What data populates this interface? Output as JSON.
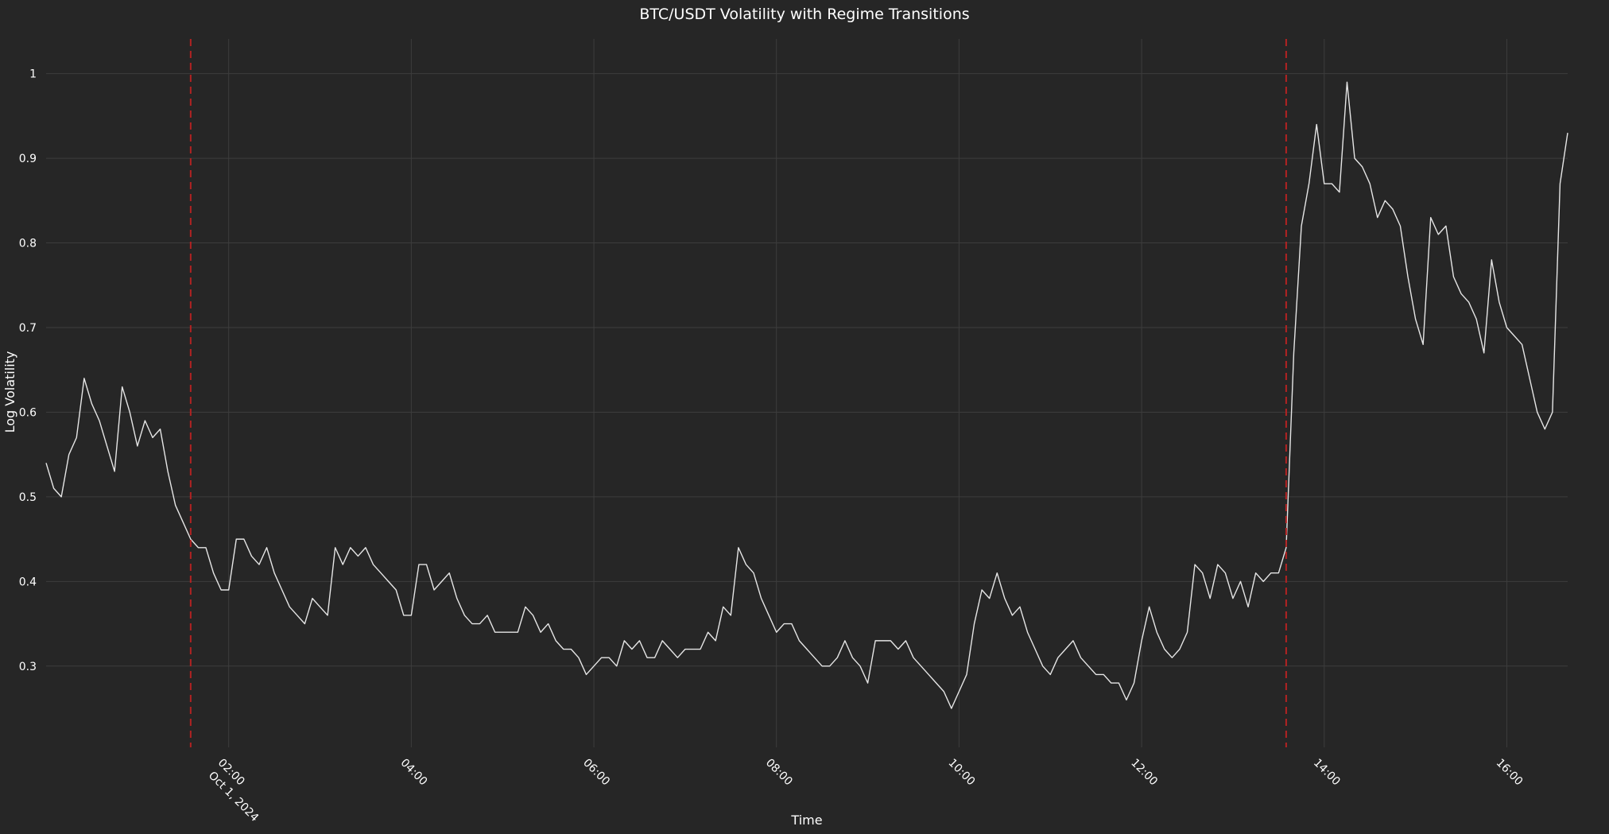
{
  "chart_data": {
    "type": "line",
    "title": "BTC/USDT Volatility with Regime Transitions",
    "x_title": "Time",
    "y_title": "Log Volatility",
    "x_date_label": "Oct 1, 2024",
    "color": "#e6e6e6",
    "transition_color": "#b22222",
    "grid": true,
    "x": [
      "2024-10-01 00:00",
      "2024-10-01 00:05",
      "2024-10-01 00:10",
      "2024-10-01 00:15",
      "2024-10-01 00:20",
      "2024-10-01 00:25",
      "2024-10-01 00:30",
      "2024-10-01 00:35",
      "2024-10-01 00:40",
      "2024-10-01 00:45",
      "2024-10-01 00:50",
      "2024-10-01 00:55",
      "2024-10-01 01:00",
      "2024-10-01 01:05",
      "2024-10-01 01:10",
      "2024-10-01 01:15",
      "2024-10-01 01:20",
      "2024-10-01 01:25",
      "2024-10-01 01:30",
      "2024-10-01 01:35",
      "2024-10-01 01:40",
      "2024-10-01 01:45",
      "2024-10-01 01:50",
      "2024-10-01 01:55",
      "2024-10-01 02:00",
      "2024-10-01 02:05",
      "2024-10-01 02:10",
      "2024-10-01 02:15",
      "2024-10-01 02:20",
      "2024-10-01 02:25",
      "2024-10-01 02:30",
      "2024-10-01 02:35",
      "2024-10-01 02:40",
      "2024-10-01 02:45",
      "2024-10-01 02:50",
      "2024-10-01 02:55",
      "2024-10-01 03:00",
      "2024-10-01 03:05",
      "2024-10-01 03:10",
      "2024-10-01 03:15",
      "2024-10-01 03:20",
      "2024-10-01 03:25",
      "2024-10-01 03:30",
      "2024-10-01 03:35",
      "2024-10-01 03:40",
      "2024-10-01 03:45",
      "2024-10-01 03:50",
      "2024-10-01 03:55",
      "2024-10-01 04:00",
      "2024-10-01 04:05",
      "2024-10-01 04:10",
      "2024-10-01 04:15",
      "2024-10-01 04:20",
      "2024-10-01 04:25",
      "2024-10-01 04:30",
      "2024-10-01 04:35",
      "2024-10-01 04:40",
      "2024-10-01 04:45",
      "2024-10-01 04:50",
      "2024-10-01 04:55",
      "2024-10-01 05:00",
      "2024-10-01 05:05",
      "2024-10-01 05:10",
      "2024-10-01 05:15",
      "2024-10-01 05:20",
      "2024-10-01 05:25",
      "2024-10-01 05:30",
      "2024-10-01 05:35",
      "2024-10-01 05:40",
      "2024-10-01 05:45",
      "2024-10-01 05:50",
      "2024-10-01 05:55",
      "2024-10-01 06:00",
      "2024-10-01 06:05",
      "2024-10-01 06:10",
      "2024-10-01 06:15",
      "2024-10-01 06:20",
      "2024-10-01 06:25",
      "2024-10-01 06:30",
      "2024-10-01 06:35",
      "2024-10-01 06:40",
      "2024-10-01 06:45",
      "2024-10-01 06:50",
      "2024-10-01 06:55",
      "2024-10-01 07:00",
      "2024-10-01 07:05",
      "2024-10-01 07:10",
      "2024-10-01 07:15",
      "2024-10-01 07:20",
      "2024-10-01 07:25",
      "2024-10-01 07:30",
      "2024-10-01 07:35",
      "2024-10-01 07:40",
      "2024-10-01 07:45",
      "2024-10-01 07:50",
      "2024-10-01 07:55",
      "2024-10-01 08:00",
      "2024-10-01 08:05",
      "2024-10-01 08:10",
      "2024-10-01 08:15",
      "2024-10-01 08:20",
      "2024-10-01 08:25",
      "2024-10-01 08:30",
      "2024-10-01 08:35",
      "2024-10-01 08:40",
      "2024-10-01 08:45",
      "2024-10-01 08:50",
      "2024-10-01 08:55",
      "2024-10-01 09:00",
      "2024-10-01 09:05",
      "2024-10-01 09:10",
      "2024-10-01 09:15",
      "2024-10-01 09:20",
      "2024-10-01 09:25",
      "2024-10-01 09:30",
      "2024-10-01 09:35",
      "2024-10-01 09:40",
      "2024-10-01 09:45",
      "2024-10-01 09:50",
      "2024-10-01 09:55",
      "2024-10-01 10:00",
      "2024-10-01 10:05",
      "2024-10-01 10:10",
      "2024-10-01 10:15",
      "2024-10-01 10:20",
      "2024-10-01 10:25",
      "2024-10-01 10:30",
      "2024-10-01 10:35",
      "2024-10-01 10:40",
      "2024-10-01 10:45",
      "2024-10-01 10:50",
      "2024-10-01 10:55",
      "2024-10-01 11:00",
      "2024-10-01 11:05",
      "2024-10-01 11:10",
      "2024-10-01 11:15",
      "2024-10-01 11:20",
      "2024-10-01 11:25",
      "2024-10-01 11:30",
      "2024-10-01 11:35",
      "2024-10-01 11:40",
      "2024-10-01 11:45",
      "2024-10-01 11:50",
      "2024-10-01 11:55",
      "2024-10-01 12:00",
      "2024-10-01 12:05",
      "2024-10-01 12:10",
      "2024-10-01 12:15",
      "2024-10-01 12:20",
      "2024-10-01 12:25",
      "2024-10-01 12:30",
      "2024-10-01 12:35",
      "2024-10-01 12:40",
      "2024-10-01 12:45",
      "2024-10-01 12:50",
      "2024-10-01 12:55",
      "2024-10-01 13:00",
      "2024-10-01 13:05",
      "2024-10-01 13:10",
      "2024-10-01 13:15",
      "2024-10-01 13:20",
      "2024-10-01 13:25",
      "2024-10-01 13:30",
      "2024-10-01 13:35",
      "2024-10-01 13:40",
      "2024-10-01 13:45",
      "2024-10-01 13:50",
      "2024-10-01 13:55",
      "2024-10-01 14:00",
      "2024-10-01 14:05",
      "2024-10-01 14:10",
      "2024-10-01 14:15",
      "2024-10-01 14:20",
      "2024-10-01 14:25",
      "2024-10-01 14:30",
      "2024-10-01 14:35",
      "2024-10-01 14:40",
      "2024-10-01 14:45",
      "2024-10-01 14:50",
      "2024-10-01 14:55",
      "2024-10-01 15:00",
      "2024-10-01 15:05",
      "2024-10-01 15:10",
      "2024-10-01 15:15",
      "2024-10-01 15:20",
      "2024-10-01 15:25",
      "2024-10-01 15:30",
      "2024-10-01 15:35",
      "2024-10-01 15:40",
      "2024-10-01 15:45",
      "2024-10-01 15:50",
      "2024-10-01 15:55",
      "2024-10-01 16:00",
      "2024-10-01 16:05",
      "2024-10-01 16:10",
      "2024-10-01 16:15",
      "2024-10-01 16:20",
      "2024-10-01 16:25",
      "2024-10-01 16:30",
      "2024-10-01 16:35",
      "2024-10-01 16:40"
    ],
    "values": [
      0.54,
      0.51,
      0.5,
      0.55,
      0.57,
      0.64,
      0.61,
      0.59,
      0.56,
      0.53,
      0.63,
      0.6,
      0.56,
      0.59,
      0.57,
      0.58,
      0.53,
      0.49,
      0.47,
      0.45,
      0.44,
      0.44,
      0.41,
      0.39,
      0.39,
      0.45,
      0.45,
      0.43,
      0.42,
      0.44,
      0.41,
      0.39,
      0.37,
      0.36,
      0.35,
      0.38,
      0.37,
      0.36,
      0.44,
      0.42,
      0.44,
      0.43,
      0.44,
      0.42,
      0.41,
      0.4,
      0.39,
      0.36,
      0.36,
      0.42,
      0.42,
      0.39,
      0.4,
      0.41,
      0.38,
      0.36,
      0.35,
      0.35,
      0.36,
      0.34,
      0.34,
      0.34,
      0.34,
      0.37,
      0.36,
      0.34,
      0.35,
      0.33,
      0.32,
      0.32,
      0.31,
      0.29,
      0.3,
      0.31,
      0.31,
      0.3,
      0.33,
      0.32,
      0.33,
      0.31,
      0.31,
      0.33,
      0.32,
      0.31,
      0.32,
      0.32,
      0.32,
      0.34,
      0.33,
      0.37,
      0.36,
      0.44,
      0.42,
      0.41,
      0.38,
      0.36,
      0.34,
      0.35,
      0.35,
      0.33,
      0.32,
      0.31,
      0.3,
      0.3,
      0.31,
      0.33,
      0.31,
      0.3,
      0.28,
      0.33,
      0.33,
      0.33,
      0.32,
      0.33,
      0.31,
      0.3,
      0.29,
      0.28,
      0.27,
      0.25,
      0.27,
      0.29,
      0.35,
      0.39,
      0.38,
      0.41,
      0.38,
      0.36,
      0.37,
      0.34,
      0.32,
      0.3,
      0.29,
      0.31,
      0.32,
      0.33,
      0.31,
      0.3,
      0.29,
      0.29,
      0.28,
      0.28,
      0.26,
      0.28,
      0.33,
      0.37,
      0.34,
      0.32,
      0.31,
      0.32,
      0.34,
      0.42,
      0.41,
      0.38,
      0.42,
      0.41,
      0.38,
      0.4,
      0.37,
      0.41,
      0.4,
      0.41,
      0.41,
      0.44,
      0.67,
      0.82,
      0.87,
      0.94,
      0.87,
      0.87,
      0.86,
      0.99,
      0.9,
      0.89,
      0.87,
      0.83,
      0.85,
      0.84,
      0.82,
      0.76,
      0.71,
      0.68,
      0.83,
      0.81,
      0.82,
      0.76,
      0.74,
      0.73,
      0.71,
      0.67,
      0.78,
      0.73,
      0.7,
      0.69,
      0.68,
      0.64,
      0.6,
      0.58,
      0.6,
      0.87,
      0.93
    ],
    "regime_transitions": [
      "2024-10-01 01:35",
      "2024-10-01 13:35"
    ],
    "xlim": [
      "2024-10-01 00:00",
      "2024-10-01 16:40"
    ],
    "xticks": [
      {
        "value": "2024-10-01 02:00",
        "label": "02:00"
      },
      {
        "value": "2024-10-01 04:00",
        "label": "04:00"
      },
      {
        "value": "2024-10-01 06:00",
        "label": "06:00"
      },
      {
        "value": "2024-10-01 08:00",
        "label": "08:00"
      },
      {
        "value": "2024-10-01 10:00",
        "label": "10:00"
      },
      {
        "value": "2024-10-01 12:00",
        "label": "12:00"
      },
      {
        "value": "2024-10-01 14:00",
        "label": "14:00"
      },
      {
        "value": "2024-10-01 16:00",
        "label": "16:00"
      }
    ],
    "ylim": [
      0.204,
      1.041
    ],
    "yticks": [
      0.3,
      0.4,
      0.5,
      0.6,
      0.7,
      0.8,
      0.9,
      1
    ]
  }
}
